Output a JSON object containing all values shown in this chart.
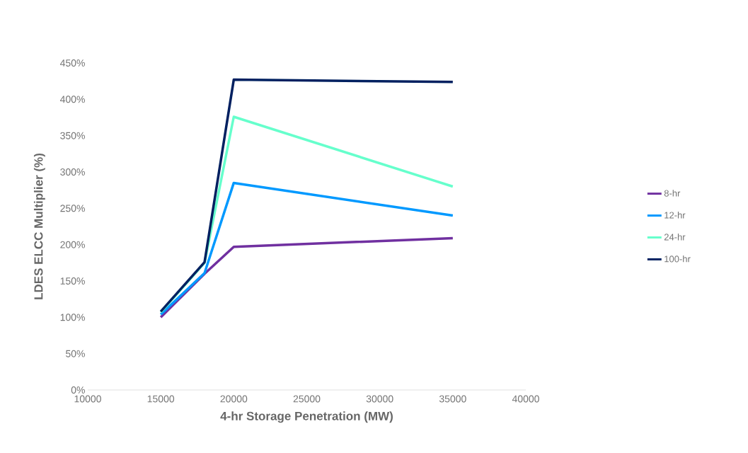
{
  "chart_data": {
    "type": "line",
    "xlabel": "4-hr Storage Penetration (MW)",
    "ylabel": "LDES ELCC Multiplier (%)",
    "x": [
      15000,
      18000,
      20000,
      35000
    ],
    "series": [
      {
        "name": "8-hr",
        "color": "#7030a0",
        "values": [
          100,
          160,
          197,
          209
        ]
      },
      {
        "name": "12-hr",
        "color": "#0099ff",
        "values": [
          104,
          161,
          285,
          240
        ]
      },
      {
        "name": "24-hr",
        "color": "#66ffcc",
        "values": [
          107,
          175,
          376,
          280
        ]
      },
      {
        "name": "100-hr",
        "color": "#002060",
        "values": [
          108,
          176,
          427,
          424
        ]
      }
    ],
    "xlim": [
      10000,
      40000
    ],
    "xticks": [
      10000,
      15000,
      20000,
      25000,
      30000,
      35000,
      40000
    ],
    "ylim": [
      0,
      450
    ],
    "yticks": [
      {
        "value": 0,
        "label": "0%"
      },
      {
        "value": 50,
        "label": "50%"
      },
      {
        "value": 100,
        "label": "100%"
      },
      {
        "value": 150,
        "label": "150%"
      },
      {
        "value": 200,
        "label": "200%"
      },
      {
        "value": 250,
        "label": "250%"
      },
      {
        "value": 300,
        "label": "300%"
      },
      {
        "value": 350,
        "label": "350%"
      },
      {
        "value": 400,
        "label": "400%"
      },
      {
        "value": 450,
        "label": "450%"
      }
    ],
    "grid": false,
    "legend": "right",
    "marker": "none",
    "line_style": "solid"
  }
}
